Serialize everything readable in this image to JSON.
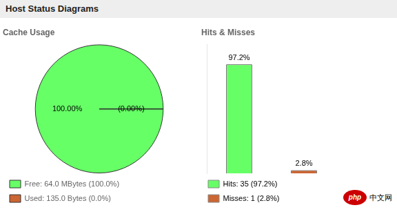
{
  "title": "Host Status Diagrams",
  "chart_data": [
    {
      "type": "pie",
      "title": "Cache Usage",
      "categories": [
        "Free: 64.0 MBytes (100.0%)",
        "Used: 135.0 Bytes (0.0%)"
      ],
      "values": [
        99.9999,
        0.0001
      ],
      "value_labels": [
        "100.00%",
        "(0.00%)"
      ],
      "colors": [
        "#66ff66",
        "#cc6633"
      ],
      "data_labels": true,
      "legend": "lower left"
    },
    {
      "type": "bar",
      "title": "Hits & Misses",
      "categories": [
        "Hits: 35 (97.2%)",
        "Misses: 1 (2.8%)"
      ],
      "values": [
        97.2,
        2.8
      ],
      "value_labels": [
        "97.2%",
        "2.8%"
      ],
      "colors": [
        "#66ff66",
        "#cc6633"
      ],
      "ylim": [
        0,
        115
      ],
      "tick_labels": false,
      "grid": false,
      "data_labels": true,
      "legend": "lower left",
      "annotations": [
        "php",
        "中文网"
      ]
    }
  ]
}
